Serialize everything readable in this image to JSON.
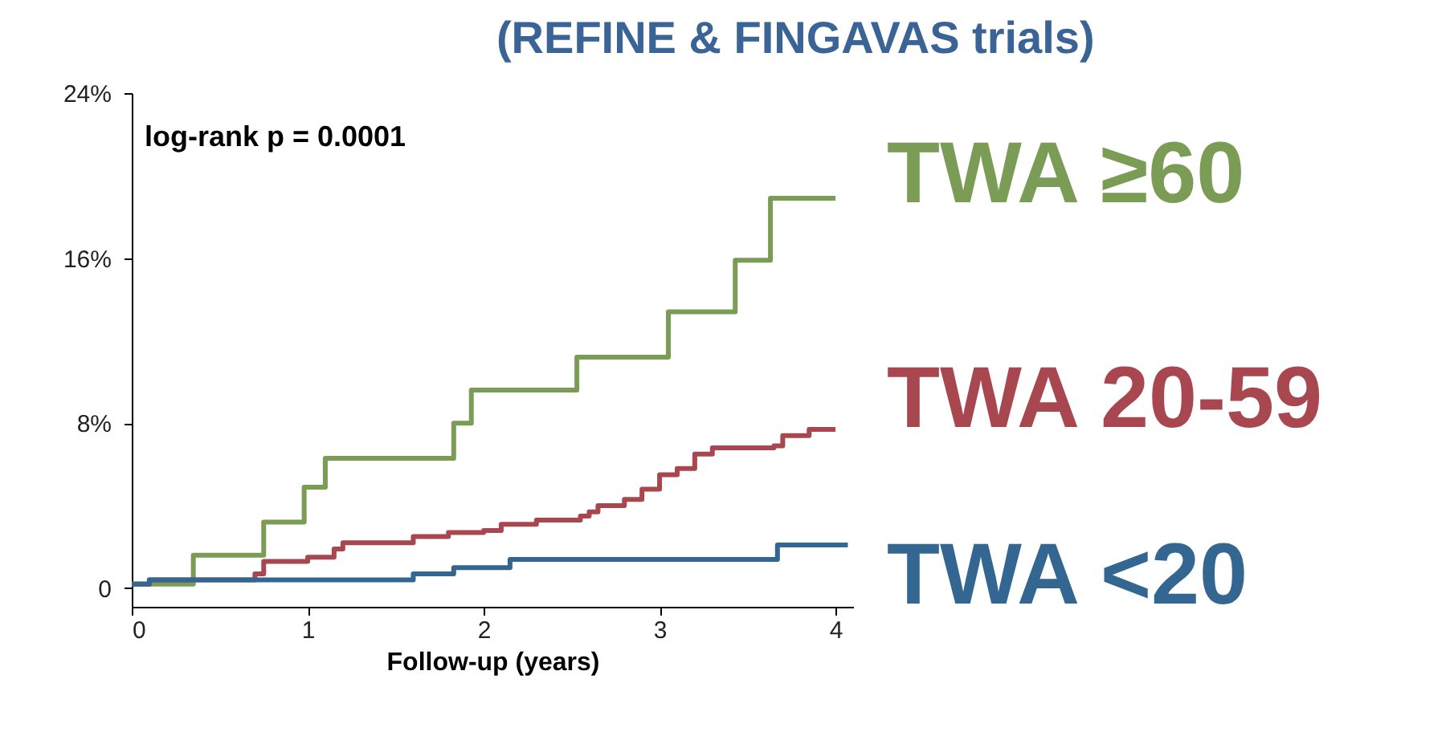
{
  "chart_data": {
    "type": "step",
    "title": "(REFINE & FINGAVAS trials)",
    "xlabel": "Follow-up (years)",
    "annotations": [
      "log-rank p = 0.0001"
    ],
    "xlim": [
      0,
      4.1
    ],
    "ylim": [
      -0.9,
      24
    ],
    "xticks": [
      0,
      1,
      2,
      3,
      4
    ],
    "yticks": [
      {
        "value": 0,
        "label": "0"
      },
      {
        "value": 8,
        "label": "8%"
      },
      {
        "value": 16,
        "label": "16%"
      },
      {
        "value": 24,
        "label": "24%"
      }
    ],
    "grid": false,
    "line_style": "solid",
    "marker": "none",
    "series": [
      {
        "name": "TWA ≥60",
        "color": "#7b9c55",
        "x": [
          0,
          0.35,
          0.75,
          0.98,
          1.1,
          1.83,
          1.93,
          2.53,
          3.05,
          3.43,
          3.63,
          4.0
        ],
        "values": [
          0.2,
          1.6,
          3.2,
          4.9,
          6.3,
          8.0,
          9.6,
          11.2,
          13.4,
          15.9,
          18.9,
          18.9
        ]
      },
      {
        "name": "TWA 20-59",
        "color": "#a8474f",
        "x": [
          0,
          0.1,
          0.7,
          0.75,
          1.0,
          1.15,
          1.2,
          1.6,
          1.8,
          2.0,
          2.1,
          2.3,
          2.55,
          2.6,
          2.65,
          2.8,
          2.9,
          3.0,
          3.1,
          3.2,
          3.3,
          3.65,
          3.7,
          3.85,
          4.0
        ],
        "values": [
          0.2,
          0.4,
          0.7,
          1.3,
          1.5,
          1.9,
          2.2,
          2.5,
          2.7,
          2.8,
          3.1,
          3.3,
          3.5,
          3.7,
          4.0,
          4.3,
          4.8,
          5.5,
          5.8,
          6.5,
          6.8,
          6.9,
          7.4,
          7.7,
          7.7
        ]
      },
      {
        "name": "TWA <20",
        "color": "#336791",
        "x": [
          0,
          0.1,
          1.6,
          1.83,
          2.15,
          3.67,
          4.07
        ],
        "values": [
          0.2,
          0.4,
          0.7,
          1.0,
          1.4,
          2.1,
          2.1
        ]
      }
    ]
  }
}
